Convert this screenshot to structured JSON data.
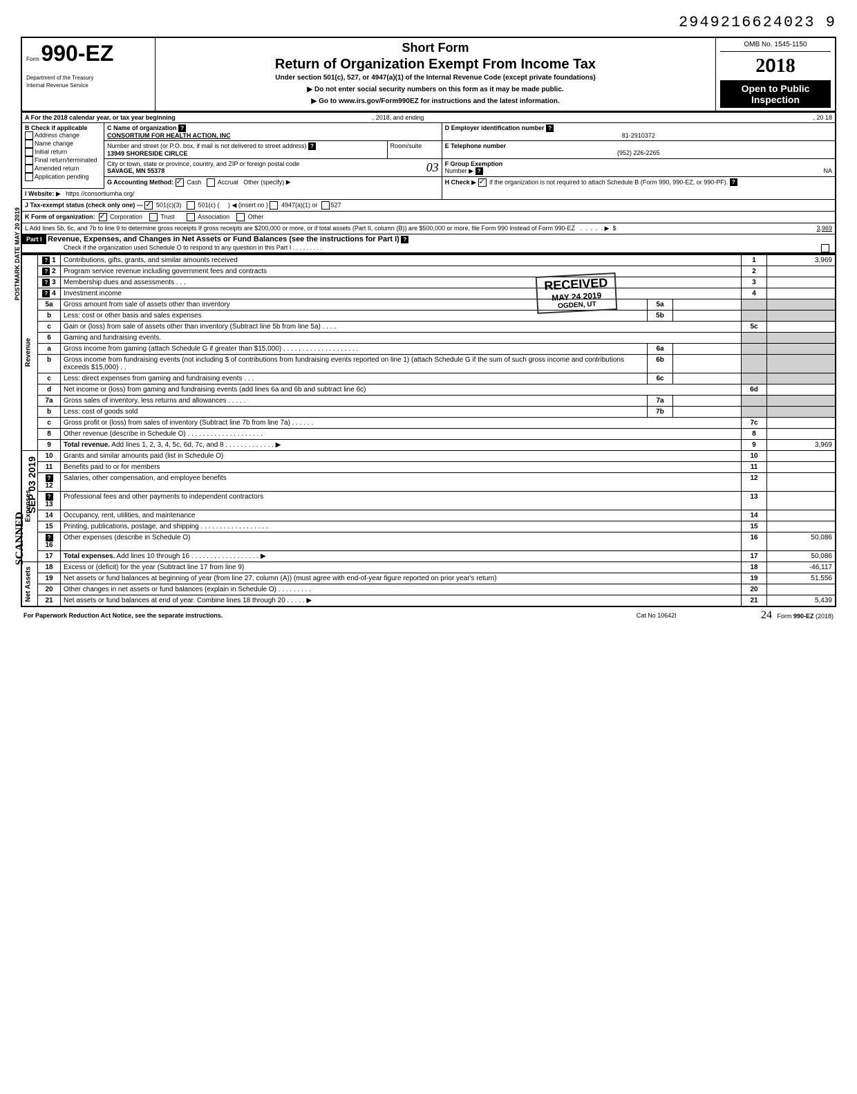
{
  "doc_number": "2949216624023  9",
  "header": {
    "form_no": "990-EZ",
    "form_prefix": "Form",
    "dept": "Department of the Treasury",
    "irs": "Internal Revenue Service",
    "short_form": "Short Form",
    "title": "Return of Organization Exempt From Income Tax",
    "subtitle": "Under section 501(c), 527, or 4947(a)(1) of the Internal Revenue Code (except private foundations)",
    "warn1": "Do not enter social security numbers on this form as it may be made public.",
    "warn2": "Go to www.irs.gov/Form990EZ for instructions and the latest information.",
    "omb": "OMB No. 1545-1150",
    "year": "2018",
    "open1": "Open to Public",
    "open2": "Inspection"
  },
  "section_a": {
    "label": "A For the 2018 calendar year, or tax year beginning",
    "mid": ", 2018, and ending",
    "end": ", 20   18"
  },
  "section_b": {
    "title": "B  Check if applicable",
    "items": [
      "Address change",
      "Name change",
      "Initial return",
      "Final return/terminated",
      "Amended return",
      "Application pending"
    ]
  },
  "section_c": {
    "label": "C  Name of organization",
    "org": "CONSORTIUM FOR HEALTH ACTION, INC",
    "addr_label": "Number and street (or P.O. box, if mail is not delivered to street address)",
    "room_label": "Room/suite",
    "street": "13949 SHORESIDE CIRLCE",
    "city_label": "City or town, state or province, country, and ZIP or foreign postal code",
    "city": "SAVAGE, MN  55378",
    "handwritten": "03"
  },
  "section_d": {
    "label": "D Employer identification number",
    "value": "81-2910372"
  },
  "section_e": {
    "label": "E Telephone number",
    "value": "(952) 226-2265"
  },
  "section_f": {
    "label": "F  Group Exemption",
    "label2": "Number",
    "value": "NA"
  },
  "section_g": {
    "label": "G  Accounting Method:",
    "cash": "Cash",
    "accrual": "Accrual",
    "other": "Other (specify)"
  },
  "section_h": {
    "label": "H  Check",
    "text": "if the organization is not required to attach Schedule B (Form 990, 990-EZ, or 990-PF)."
  },
  "section_i": {
    "label": "I   Website:",
    "value": "https //consortiumha org/"
  },
  "section_j": {
    "label": "J  Tax-exempt status (check only one) —",
    "o1": "501(c)(3)",
    "o2": "501(c) (",
    "o2b": ")  ◀ (insert no )",
    "o3": "4947(a)(1) or",
    "o4": "527"
  },
  "section_k": {
    "label": "K  Form of organization:",
    "o1": "Corporation",
    "o2": "Trust",
    "o3": "Association",
    "o4": "Other"
  },
  "section_l": {
    "text": "L  Add lines 5b, 6c, and 7b to line 9 to determine gross receipts  If gross receipts are $200,000 or more, or if total assets (Part II, column (B)) are $500,000 or more, file Form 990 instead of Form 990-EZ",
    "amount": "3,969"
  },
  "part1": {
    "label": "Part I",
    "title": "Revenue, Expenses, and Changes in Net Assets or Fund Balances (see the instructions for Part I)",
    "check": "Check if the organization used Schedule O to respond to any question in this Part I"
  },
  "received_stamp": {
    "l1": "RECEIVED",
    "l2": "MAY 24 2019",
    "l3": "OGDEN, UT"
  },
  "stamps": {
    "postmark": "POSTMARK DATE  MAY 20 2019",
    "scanned": "SCANNED",
    "sep": "SEP 03 2019"
  },
  "lines": [
    {
      "side": "rev",
      "n": "1",
      "t": "Contributions, gifts, grants, and similar amounts received",
      "ln": "1",
      "amt": "3,969",
      "help": true
    },
    {
      "side": "rev",
      "n": "2",
      "t": "Program service revenue including government fees and contracts",
      "ln": "2",
      "amt": "",
      "help": true
    },
    {
      "side": "rev",
      "n": "3",
      "t": "Membership dues and assessments .  .  .",
      "ln": "3",
      "amt": "",
      "help": true
    },
    {
      "side": "rev",
      "n": "4",
      "t": "Investment income",
      "ln": "4",
      "amt": "",
      "help": true
    },
    {
      "side": "rev",
      "n": "5a",
      "t": "Gross amount from sale of assets other than inventory",
      "ln": "5a",
      "sub": true
    },
    {
      "side": "rev",
      "n": "b",
      "t": "Less: cost or other basis and sales expenses",
      "ln": "5b",
      "sub": true
    },
    {
      "side": "rev",
      "n": "c",
      "t": "Gain or (loss) from sale of assets other than inventory (Subtract line 5b from line 5a) .  .  .  .",
      "ln": "5c",
      "amt": ""
    },
    {
      "side": "rev",
      "n": "6",
      "t": "Gaming and fundraising events.",
      "nocell": true
    },
    {
      "side": "rev",
      "n": "a",
      "t": "Gross income from gaming (attach Schedule G if greater than $15,000) .  .  .  .  .  .  .  .  .  .  .  .  .  .  .  .  .  .  .  .",
      "ln": "6a",
      "sub": true
    },
    {
      "side": "rev",
      "n": "b",
      "t": "Gross income from fundraising events (not including  $                   of contributions from fundraising events reported on line 1) (attach Schedule G if the sum of such gross income and contributions exceeds $15,000) .  .",
      "ln": "6b",
      "sub": true
    },
    {
      "side": "rev",
      "n": "c",
      "t": "Less: direct expenses from gaming and fundraising events   .  .  .",
      "ln": "6c",
      "sub": true
    },
    {
      "side": "rev",
      "n": "d",
      "t": "Net income or (loss) from gaming and fundraising events (add lines 6a and 6b and subtract line 6c)",
      "ln": "6d",
      "amt": ""
    },
    {
      "side": "rev",
      "n": "7a",
      "t": "Gross sales of inventory, less returns and allowances  .  .  .  .  .",
      "ln": "7a",
      "sub": true
    },
    {
      "side": "rev",
      "n": "b",
      "t": "Less: cost of goods sold",
      "ln": "7b",
      "sub": true
    },
    {
      "side": "rev",
      "n": "c",
      "t": "Gross profit or (loss) from sales of inventory (Subtract line 7b from line 7a)  .  .  .  .  .  .",
      "ln": "7c",
      "amt": ""
    },
    {
      "side": "rev",
      "n": "8",
      "t": "Other revenue (describe in Schedule O) .  .  .  .  .  .  .  .  .  .  .  .  .  .  .  .  .  .  .  .",
      "ln": "8",
      "amt": ""
    },
    {
      "side": "rev",
      "n": "9",
      "t": "Total revenue. Add lines 1, 2, 3, 4, 5c, 6d, 7c, and 8   .  .  .  .  .  .  .  .  .  .  .  .  .  ▶",
      "ln": "9",
      "amt": "3,969",
      "bold": true
    },
    {
      "side": "exp",
      "n": "10",
      "t": "Grants and similar amounts paid (list in Schedule O)",
      "ln": "10",
      "amt": ""
    },
    {
      "side": "exp",
      "n": "11",
      "t": "Benefits paid to or for members",
      "ln": "11",
      "amt": ""
    },
    {
      "side": "exp",
      "n": "12",
      "t": "Salaries, other compensation, and employee benefits",
      "ln": "12",
      "amt": "",
      "help": true
    },
    {
      "side": "exp",
      "n": "13",
      "t": "Professional fees and other payments to independent contractors",
      "ln": "13",
      "amt": "",
      "help": true
    },
    {
      "side": "exp",
      "n": "14",
      "t": "Occupancy, rent, utilities, and maintenance",
      "ln": "14",
      "amt": ""
    },
    {
      "side": "exp",
      "n": "15",
      "t": "Printing, publications, postage, and shipping .  .  .  .  .  .  .  .  .  .  .  .  .  .  .  .  .  .",
      "ln": "15",
      "amt": ""
    },
    {
      "side": "exp",
      "n": "16",
      "t": "Other expenses (describe in Schedule O)",
      "ln": "16",
      "amt": "50,086",
      "help": true
    },
    {
      "side": "exp",
      "n": "17",
      "t": "Total expenses. Add lines 10 through 16 .  .  .  .  .  .  .  .  .  .  .  .  .  .  .  .  .  .  ▶",
      "ln": "17",
      "amt": "50,086",
      "bold": true
    },
    {
      "side": "net",
      "n": "18",
      "t": "Excess or (deficit) for the year (Subtract line 17 from line 9)",
      "ln": "18",
      "amt": "-46,117"
    },
    {
      "side": "net",
      "n": "19",
      "t": "Net assets or fund balances at beginning of year (from line 27, column (A)) (must agree with end-of-year figure reported on prior year's return)",
      "ln": "19",
      "amt": "51,556"
    },
    {
      "side": "net",
      "n": "20",
      "t": "Other changes in net assets or fund balances (explain in Schedule O) .  .  .  .  .  .  .  .  .",
      "ln": "20",
      "amt": ""
    },
    {
      "side": "net",
      "n": "21",
      "t": "Net assets or fund balances at end of year. Combine lines 18 through 20   .  .  .  .  .  ▶",
      "ln": "21",
      "amt": "5,439"
    }
  ],
  "side_labels": {
    "rev": "Revenue",
    "exp": "Expenses",
    "net": "Net Assets"
  },
  "footer": {
    "left": "For Paperwork Reduction Act Notice, see the separate instructions.",
    "mid": "Cat  No  10642I",
    "right": "Form 990-EZ (2018)",
    "hand": "24"
  }
}
